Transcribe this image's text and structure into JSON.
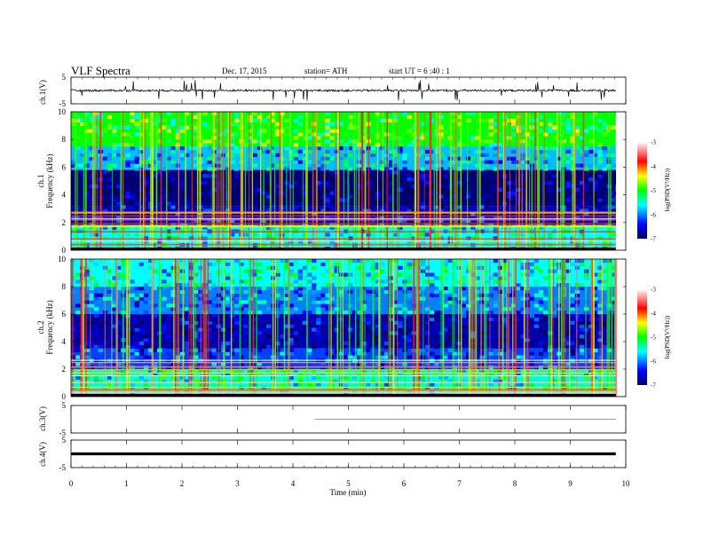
{
  "header": {
    "title": "VLF  Spectra",
    "date": "Dec. 17, 2015",
    "station": "station= ATH",
    "start": "start  UT  =   6  :40 : 1"
  },
  "chart_data": [
    {
      "type": "line",
      "panel": "ch1-waveform",
      "ylabel": "ch.1(V)",
      "ylim": [
        -5,
        5
      ],
      "yticks": [
        "5",
        "-5"
      ],
      "description_values": {
        "baseline": 0.0,
        "noise_amplitude": 0.4,
        "spike_max": 4.0
      }
    },
    {
      "type": "heatmap",
      "panel": "ch1-spectrogram",
      "ylabel_1": "ch.1",
      "ylabel_2": "Frequency  (kHz)",
      "ylim": [
        0,
        10
      ],
      "yticks": [
        "0",
        "2",
        "4",
        "6",
        "8",
        "10"
      ],
      "colorbar": {
        "label": "log(PSD(V²/Hz))",
        "ticks": [
          "-3",
          "-4",
          "-5",
          "-6",
          "-7"
        ],
        "range": [
          -7,
          -3
        ]
      },
      "band_levels": [
        {
          "fmin": 0,
          "fmax": 1.8,
          "logpsd": -5.6
        },
        {
          "fmin": 1.8,
          "fmax": 3.2,
          "logpsd": -6.6
        },
        {
          "fmin": 3.2,
          "fmax": 5.8,
          "logpsd": -6.9
        },
        {
          "fmin": 5.8,
          "fmax": 7.5,
          "logpsd": -5.8
        },
        {
          "fmin": 7.5,
          "fmax": 10,
          "logpsd": -5.0
        }
      ]
    },
    {
      "type": "heatmap",
      "panel": "ch2-spectrogram",
      "ylabel_1": "ch.2",
      "ylabel_2": "Frequency  (kHz)",
      "ylim": [
        0,
        10
      ],
      "yticks": [
        "0",
        "2",
        "4",
        "6",
        "8",
        "10"
      ],
      "colorbar": {
        "label": "log(PSD(V²/Hz))",
        "ticks": [
          "-3",
          "-4",
          "-5",
          "-6",
          "-7"
        ],
        "range": [
          -7,
          -3
        ]
      },
      "band_levels": [
        {
          "fmin": 0,
          "fmax": 2.0,
          "logpsd": -5.5
        },
        {
          "fmin": 2.0,
          "fmax": 3.5,
          "logpsd": -6.2
        },
        {
          "fmin": 3.5,
          "fmax": 6.0,
          "logpsd": -6.7
        },
        {
          "fmin": 6.0,
          "fmax": 8.0,
          "logpsd": -6.0
        },
        {
          "fmin": 8.0,
          "fmax": 10,
          "logpsd": -5.6
        }
      ]
    },
    {
      "type": "line",
      "panel": "ch3-waveform",
      "ylabel": "ch.3(V)",
      "ylim": [
        -5,
        5
      ],
      "yticks": [
        "5",
        "-5"
      ],
      "level": 0.0
    },
    {
      "type": "line",
      "panel": "ch4-waveform",
      "ylabel": "ch.4(V)",
      "ylim": [
        -5,
        5
      ],
      "yticks": [
        "5",
        "-5"
      ],
      "level": 0.0
    }
  ],
  "xaxis": {
    "label": "Time  (min)",
    "xlim": [
      0,
      10
    ],
    "ticks": [
      "0",
      "1",
      "2",
      "3",
      "4",
      "5",
      "6",
      "7",
      "8",
      "9",
      "10"
    ],
    "data_end": 9.82
  }
}
